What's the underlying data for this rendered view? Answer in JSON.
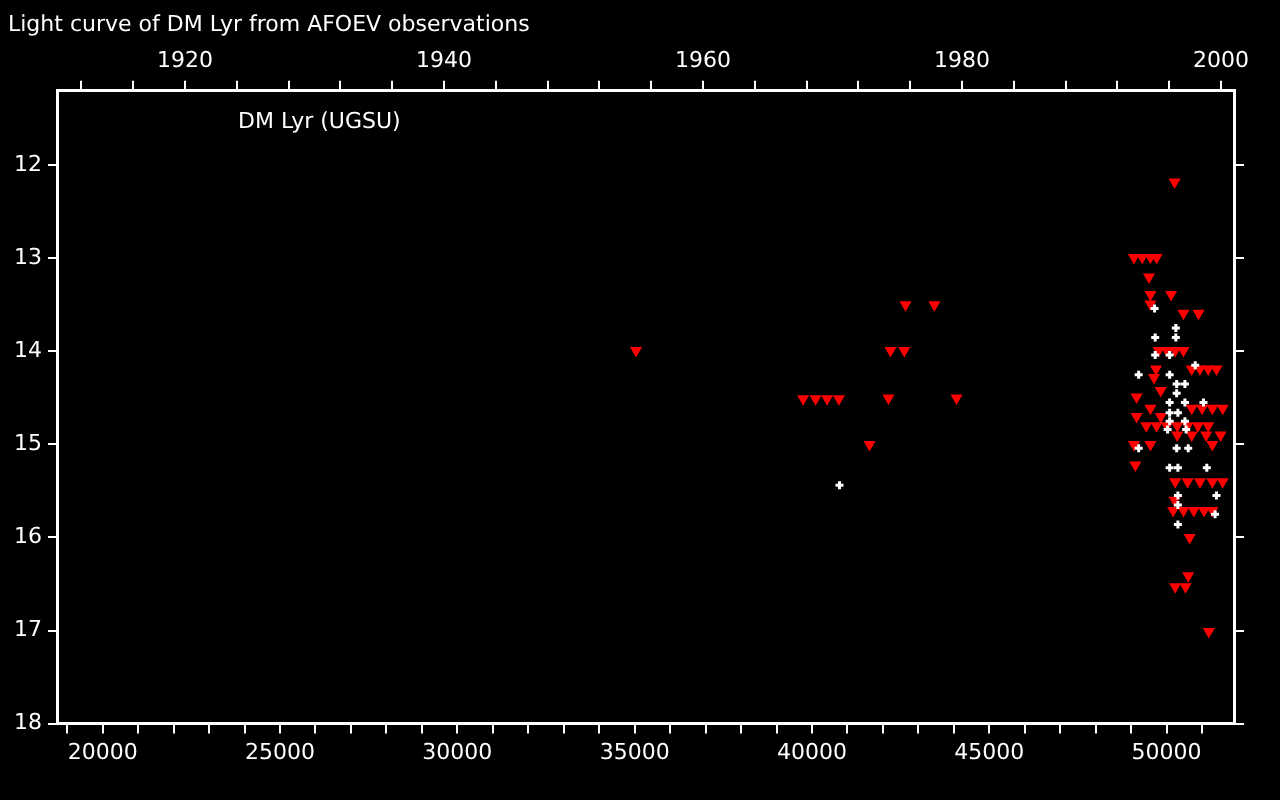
{
  "chart_data": {
    "type": "scatter",
    "title": "Light curve of DM Lyr from AFOEV observations",
    "annotations": [
      "DM Lyr (UGSU)"
    ],
    "xlim": [
      18740,
      51900
    ],
    "xticks": [
      {
        "value": 19000,
        "label": null
      },
      20000,
      {
        "value": 21000,
        "label": null
      },
      {
        "value": 22000,
        "label": null
      },
      {
        "value": 23000,
        "label": null
      },
      {
        "value": 24000,
        "label": null
      },
      25000,
      {
        "value": 26000,
        "label": null
      },
      {
        "value": 27000,
        "label": null
      },
      {
        "value": 28000,
        "label": null
      },
      {
        "value": 29000,
        "label": null
      },
      30000,
      {
        "value": 31000,
        "label": null
      },
      {
        "value": 32000,
        "label": null
      },
      {
        "value": 33000,
        "label": null
      },
      {
        "value": 34000,
        "label": null
      },
      35000,
      {
        "value": 36000,
        "label": null
      },
      {
        "value": 37000,
        "label": null
      },
      {
        "value": 38000,
        "label": null
      },
      {
        "value": 39000,
        "label": null
      },
      40000,
      {
        "value": 41000,
        "label": null
      },
      {
        "value": 42000,
        "label": null
      },
      {
        "value": 43000,
        "label": null
      },
      {
        "value": 44000,
        "label": null
      },
      45000,
      {
        "value": 46000,
        "label": null
      },
      {
        "value": 47000,
        "label": null
      },
      {
        "value": 48000,
        "label": null
      },
      {
        "value": 49000,
        "label": null
      },
      50000,
      {
        "value": 51000,
        "label": null
      }
    ],
    "x2lim": [
      1910.2,
      2001.0
    ],
    "x2ticks": [
      {
        "value": 1912,
        "label": null
      },
      {
        "value": 1916,
        "label": null
      },
      1920,
      {
        "value": 1924,
        "label": null
      },
      {
        "value": 1928,
        "label": null
      },
      {
        "value": 1932,
        "label": null
      },
      {
        "value": 1936,
        "label": null
      },
      1940,
      {
        "value": 1944,
        "label": null
      },
      {
        "value": 1948,
        "label": null
      },
      {
        "value": 1952,
        "label": null
      },
      {
        "value": 1956,
        "label": null
      },
      1960,
      {
        "value": 1964,
        "label": null
      },
      {
        "value": 1968,
        "label": null
      },
      {
        "value": 1972,
        "label": null
      },
      {
        "value": 1976,
        "label": null
      },
      1980,
      {
        "value": 1984,
        "label": null
      },
      {
        "value": 1988,
        "label": null
      },
      {
        "value": 1992,
        "label": null
      },
      {
        "value": 1996,
        "label": null
      },
      2000
    ],
    "ylim": [
      18,
      11.2
    ],
    "yticks": [
      12,
      13,
      14,
      15,
      16,
      17,
      18
    ],
    "series": [
      {
        "color": "#ff0000",
        "marker": "triangle",
        "x": [
          35040,
          39752,
          40101,
          40427,
          40759,
          42156,
          44076,
          42214,
          42603,
          42638,
          43452,
          41622,
          50225,
          49078,
          49311,
          49544,
          49718,
          49503,
          49544,
          50126,
          49544,
          50475,
          50900,
          49776,
          50009,
          50242,
          50475,
          49701,
          50708,
          50940,
          51173,
          51406,
          49643,
          49154,
          49835,
          49544,
          50708,
          50999,
          51290,
          51581,
          49154,
          49835,
          49427,
          49718,
          50009,
          50300,
          50591,
          50883,
          51173,
          50300,
          50708,
          51115,
          51522,
          49078,
          49544,
          51290,
          49119,
          50242,
          50591,
          50940,
          51290,
          51581,
          50225,
          50184,
          50475,
          50766,
          51057,
          51290,
          50650,
          50609,
          50242,
          50533,
          51190
        ],
        "values": [
          13.99,
          14.51,
          14.51,
          14.51,
          14.51,
          14.5,
          14.5,
          13.99,
          13.99,
          13.5,
          13.5,
          15.0,
          12.18,
          12.99,
          12.99,
          12.99,
          12.99,
          13.2,
          13.39,
          13.39,
          13.49,
          13.59,
          13.59,
          13.99,
          13.99,
          13.99,
          13.99,
          14.19,
          14.19,
          14.19,
          14.19,
          14.19,
          14.28,
          14.49,
          14.42,
          14.61,
          14.61,
          14.61,
          14.61,
          14.61,
          14.7,
          14.7,
          14.8,
          14.8,
          14.8,
          14.8,
          14.8,
          14.8,
          14.8,
          14.9,
          14.9,
          14.9,
          14.9,
          15.0,
          15.0,
          15.0,
          15.22,
          15.4,
          15.4,
          15.4,
          15.4,
          15.4,
          15.6,
          15.71,
          15.71,
          15.71,
          15.71,
          15.71,
          16.0,
          16.41,
          16.53,
          16.53,
          17.01
        ]
      },
      {
        "color": "#ffffff",
        "marker": "cross",
        "x": [
          40776,
          49660,
          50260,
          49678,
          50260,
          49678,
          50085,
          50807,
          49212,
          50085,
          50283,
          50516,
          50283,
          50085,
          50516,
          51039,
          50085,
          50318,
          50085,
          50516,
          50027,
          50551,
          49212,
          50283,
          50609,
          50085,
          50318,
          51133,
          50318,
          51406,
          50318,
          51366,
          50318
        ],
        "values": [
          15.44,
          13.54,
          13.75,
          13.85,
          13.85,
          14.04,
          14.04,
          14.15,
          14.25,
          14.25,
          14.35,
          14.35,
          14.45,
          14.55,
          14.55,
          14.55,
          14.66,
          14.66,
          14.75,
          14.75,
          14.84,
          14.84,
          15.04,
          15.04,
          15.04,
          15.25,
          15.25,
          15.25,
          15.55,
          15.55,
          15.65,
          15.75,
          15.86
        ]
      }
    ]
  }
}
